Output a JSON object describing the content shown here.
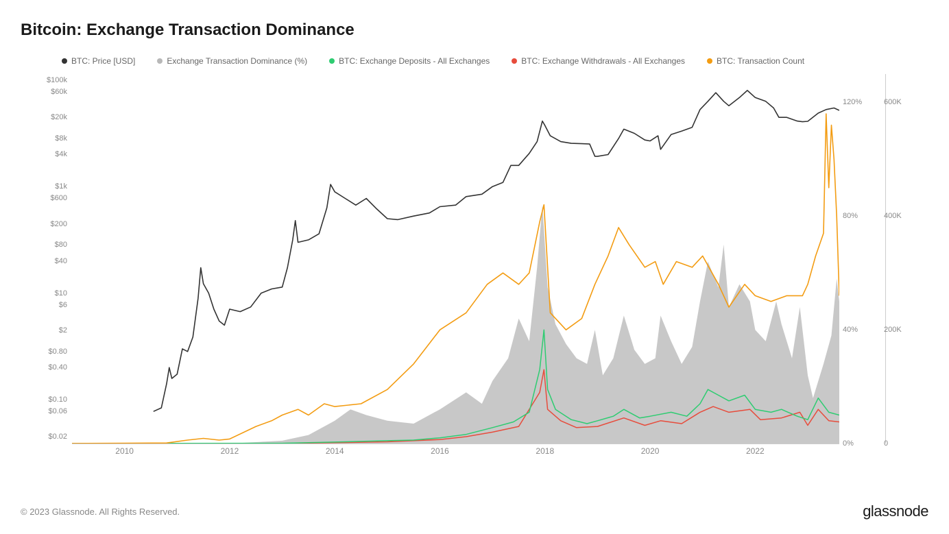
{
  "title": "Bitcoin: Exchange Transaction Dominance",
  "copyright": "© 2023 Glassnode. All Rights Reserved.",
  "brand": "glassnode",
  "legend": [
    {
      "label": "BTC: Price [USD]",
      "color": "#333333"
    },
    {
      "label": "Exchange Transaction Dominance (%)",
      "color": "#b8b8b8"
    },
    {
      "label": "BTC: Exchange Deposits - All Exchanges",
      "color": "#2ecc71"
    },
    {
      "label": "BTC: Exchange Withdrawals - All Exchanges",
      "color": "#e74c3c"
    },
    {
      "label": "BTC: Transaction Count",
      "color": "#f39c12"
    }
  ],
  "chart": {
    "background_color": "#ffffff",
    "grid_color": "#e8e8e8",
    "axis_color": "#cccccc",
    "font_size_axis": 11,
    "x": {
      "min": 2009.0,
      "max": 2023.6,
      "ticks": [
        2010,
        2012,
        2014,
        2016,
        2018,
        2020,
        2022
      ]
    },
    "y_left": {
      "type": "log",
      "ticks": [
        {
          "v": 0.02,
          "label": "$0.02"
        },
        {
          "v": 0.06,
          "label": "$0.06"
        },
        {
          "v": 0.1,
          "label": "$0.10"
        },
        {
          "v": 0.4,
          "label": "$0.40"
        },
        {
          "v": 0.8,
          "label": "$0.80"
        },
        {
          "v": 2,
          "label": "$2"
        },
        {
          "v": 6,
          "label": "$6"
        },
        {
          "v": 10,
          "label": "$10"
        },
        {
          "v": 40,
          "label": "$40"
        },
        {
          "v": 80,
          "label": "$80"
        },
        {
          "v": 200,
          "label": "$200"
        },
        {
          "v": 600,
          "label": "$600"
        },
        {
          "v": 1000,
          "label": "$1k"
        },
        {
          "v": 4000,
          "label": "$4k"
        },
        {
          "v": 8000,
          "label": "$8k"
        },
        {
          "v": 20000,
          "label": "$20k"
        },
        {
          "v": 60000,
          "label": "$60k"
        },
        {
          "v": 100000,
          "label": "$100k"
        }
      ],
      "min": 0.015,
      "max": 130000
    },
    "y_right_pct": {
      "min": 0,
      "max": 130,
      "ticks": [
        0,
        40,
        80,
        120
      ]
    },
    "y_right_count": {
      "min": 0,
      "max": 650000,
      "ticks": [
        0,
        200000,
        400000,
        600000
      ]
    },
    "series": {
      "price": {
        "color": "#333333",
        "width": 1.6,
        "axis": "left_log",
        "data": [
          [
            2010.55,
            0.06
          ],
          [
            2010.7,
            0.07
          ],
          [
            2010.8,
            0.2
          ],
          [
            2010.85,
            0.4
          ],
          [
            2010.9,
            0.25
          ],
          [
            2011.0,
            0.3
          ],
          [
            2011.1,
            0.9
          ],
          [
            2011.2,
            0.8
          ],
          [
            2011.3,
            1.5
          ],
          [
            2011.4,
            8
          ],
          [
            2011.45,
            30
          ],
          [
            2011.5,
            15
          ],
          [
            2011.6,
            10
          ],
          [
            2011.7,
            5
          ],
          [
            2011.8,
            3
          ],
          [
            2011.9,
            2.5
          ],
          [
            2012.0,
            5
          ],
          [
            2012.2,
            4.5
          ],
          [
            2012.4,
            5.5
          ],
          [
            2012.6,
            10
          ],
          [
            2012.8,
            12
          ],
          [
            2013.0,
            13
          ],
          [
            2013.1,
            30
          ],
          [
            2013.2,
            100
          ],
          [
            2013.25,
            230
          ],
          [
            2013.3,
            90
          ],
          [
            2013.5,
            100
          ],
          [
            2013.7,
            130
          ],
          [
            2013.85,
            400
          ],
          [
            2013.92,
            1100
          ],
          [
            2014.0,
            800
          ],
          [
            2014.2,
            600
          ],
          [
            2014.4,
            450
          ],
          [
            2014.6,
            600
          ],
          [
            2014.8,
            380
          ],
          [
            2015.0,
            250
          ],
          [
            2015.2,
            240
          ],
          [
            2015.5,
            280
          ],
          [
            2015.8,
            320
          ],
          [
            2016.0,
            420
          ],
          [
            2016.3,
            450
          ],
          [
            2016.5,
            650
          ],
          [
            2016.8,
            720
          ],
          [
            2017.0,
            1000
          ],
          [
            2017.2,
            1200
          ],
          [
            2017.35,
            2500
          ],
          [
            2017.5,
            2500
          ],
          [
            2017.7,
            4200
          ],
          [
            2017.85,
            7000
          ],
          [
            2017.95,
            17000
          ],
          [
            2018.0,
            14000
          ],
          [
            2018.1,
            9000
          ],
          [
            2018.3,
            7000
          ],
          [
            2018.5,
            6500
          ],
          [
            2018.7,
            6400
          ],
          [
            2018.85,
            6300
          ],
          [
            2018.95,
            3700
          ],
          [
            2019.0,
            3700
          ],
          [
            2019.2,
            4000
          ],
          [
            2019.4,
            8000
          ],
          [
            2019.5,
            12000
          ],
          [
            2019.7,
            10000
          ],
          [
            2019.9,
            7500
          ],
          [
            2020.0,
            7200
          ],
          [
            2020.15,
            9000
          ],
          [
            2020.2,
            5000
          ],
          [
            2020.4,
            9500
          ],
          [
            2020.6,
            11000
          ],
          [
            2020.8,
            13000
          ],
          [
            2020.95,
            28000
          ],
          [
            2021.1,
            40000
          ],
          [
            2021.25,
            58000
          ],
          [
            2021.4,
            40000
          ],
          [
            2021.5,
            33000
          ],
          [
            2021.7,
            47000
          ],
          [
            2021.85,
            64000
          ],
          [
            2022.0,
            47000
          ],
          [
            2022.2,
            40000
          ],
          [
            2022.35,
            30000
          ],
          [
            2022.45,
            20000
          ],
          [
            2022.6,
            20000
          ],
          [
            2022.8,
            17000
          ],
          [
            2022.9,
            16500
          ],
          [
            2023.0,
            16800
          ],
          [
            2023.2,
            24000
          ],
          [
            2023.35,
            28000
          ],
          [
            2023.5,
            30000
          ],
          [
            2023.6,
            27000
          ]
        ]
      },
      "dominance": {
        "color": "#9a9a9a",
        "fill": "#9a9a9a",
        "opacity": 0.55,
        "axis": "right_pct",
        "data": [
          [
            2009,
            0
          ],
          [
            2012,
            0
          ],
          [
            2013,
            1
          ],
          [
            2013.5,
            3
          ],
          [
            2014,
            8
          ],
          [
            2014.3,
            12
          ],
          [
            2014.6,
            10
          ],
          [
            2015,
            8
          ],
          [
            2015.5,
            7
          ],
          [
            2016,
            12
          ],
          [
            2016.5,
            18
          ],
          [
            2016.8,
            14
          ],
          [
            2017,
            22
          ],
          [
            2017.3,
            30
          ],
          [
            2017.5,
            44
          ],
          [
            2017.7,
            36
          ],
          [
            2017.85,
            62
          ],
          [
            2017.95,
            84
          ],
          [
            2018.05,
            55
          ],
          [
            2018.2,
            42
          ],
          [
            2018.4,
            35
          ],
          [
            2018.6,
            30
          ],
          [
            2018.8,
            28
          ],
          [
            2018.95,
            40
          ],
          [
            2019.1,
            24
          ],
          [
            2019.3,
            30
          ],
          [
            2019.5,
            45
          ],
          [
            2019.7,
            33
          ],
          [
            2019.9,
            28
          ],
          [
            2020.1,
            30
          ],
          [
            2020.2,
            45
          ],
          [
            2020.4,
            36
          ],
          [
            2020.6,
            28
          ],
          [
            2020.8,
            34
          ],
          [
            2020.95,
            50
          ],
          [
            2021.1,
            64
          ],
          [
            2021.3,
            55
          ],
          [
            2021.4,
            70
          ],
          [
            2021.5,
            48
          ],
          [
            2021.7,
            56
          ],
          [
            2021.9,
            50
          ],
          [
            2022.0,
            40
          ],
          [
            2022.2,
            36
          ],
          [
            2022.4,
            50
          ],
          [
            2022.5,
            42
          ],
          [
            2022.7,
            30
          ],
          [
            2022.85,
            48
          ],
          [
            2023.0,
            24
          ],
          [
            2023.1,
            16
          ],
          [
            2023.3,
            28
          ],
          [
            2023.45,
            38
          ],
          [
            2023.55,
            58
          ],
          [
            2023.6,
            50
          ]
        ]
      },
      "deposits": {
        "color": "#2ecc71",
        "width": 1.5,
        "axis": "right_count",
        "data": [
          [
            2009,
            0
          ],
          [
            2013,
            500
          ],
          [
            2014,
            2500
          ],
          [
            2015,
            5000
          ],
          [
            2015.5,
            6000
          ],
          [
            2016,
            10000
          ],
          [
            2016.5,
            16000
          ],
          [
            2017,
            28000
          ],
          [
            2017.4,
            38000
          ],
          [
            2017.7,
            55000
          ],
          [
            2017.9,
            130000
          ],
          [
            2017.98,
            200000
          ],
          [
            2018.05,
            95000
          ],
          [
            2018.2,
            60000
          ],
          [
            2018.5,
            42000
          ],
          [
            2018.8,
            35000
          ],
          [
            2019,
            40000
          ],
          [
            2019.3,
            48000
          ],
          [
            2019.5,
            60000
          ],
          [
            2019.8,
            45000
          ],
          [
            2020,
            48000
          ],
          [
            2020.4,
            55000
          ],
          [
            2020.7,
            48000
          ],
          [
            2020.95,
            70000
          ],
          [
            2021.1,
            95000
          ],
          [
            2021.3,
            85000
          ],
          [
            2021.5,
            75000
          ],
          [
            2021.8,
            85000
          ],
          [
            2022,
            60000
          ],
          [
            2022.3,
            55000
          ],
          [
            2022.5,
            60000
          ],
          [
            2022.8,
            48000
          ],
          [
            2023,
            42000
          ],
          [
            2023.2,
            80000
          ],
          [
            2023.4,
            55000
          ],
          [
            2023.6,
            50000
          ]
        ]
      },
      "withdrawals": {
        "color": "#e74c3c",
        "width": 1.5,
        "axis": "right_count",
        "data": [
          [
            2009,
            0
          ],
          [
            2013,
            300
          ],
          [
            2014,
            1500
          ],
          [
            2015,
            3000
          ],
          [
            2016,
            7000
          ],
          [
            2016.5,
            12000
          ],
          [
            2017,
            20000
          ],
          [
            2017.5,
            30000
          ],
          [
            2017.9,
            90000
          ],
          [
            2017.98,
            130000
          ],
          [
            2018.05,
            60000
          ],
          [
            2018.3,
            40000
          ],
          [
            2018.6,
            28000
          ],
          [
            2019,
            30000
          ],
          [
            2019.5,
            45000
          ],
          [
            2019.9,
            32000
          ],
          [
            2020.2,
            40000
          ],
          [
            2020.6,
            35000
          ],
          [
            2020.95,
            55000
          ],
          [
            2021.2,
            65000
          ],
          [
            2021.5,
            55000
          ],
          [
            2021.9,
            60000
          ],
          [
            2022.1,
            42000
          ],
          [
            2022.5,
            45000
          ],
          [
            2022.85,
            55000
          ],
          [
            2023,
            32000
          ],
          [
            2023.2,
            60000
          ],
          [
            2023.4,
            40000
          ],
          [
            2023.6,
            38000
          ]
        ]
      },
      "txcount": {
        "color": "#f39c12",
        "width": 1.6,
        "axis": "right_count",
        "data": [
          [
            2009,
            100
          ],
          [
            2010,
            500
          ],
          [
            2010.8,
            1000
          ],
          [
            2011.2,
            6000
          ],
          [
            2011.5,
            9000
          ],
          [
            2011.8,
            6000
          ],
          [
            2012,
            8000
          ],
          [
            2012.5,
            30000
          ],
          [
            2012.8,
            40000
          ],
          [
            2013,
            50000
          ],
          [
            2013.3,
            60000
          ],
          [
            2013.5,
            50000
          ],
          [
            2013.8,
            70000
          ],
          [
            2014,
            65000
          ],
          [
            2014.5,
            70000
          ],
          [
            2015,
            95000
          ],
          [
            2015.5,
            140000
          ],
          [
            2016,
            200000
          ],
          [
            2016.5,
            230000
          ],
          [
            2016.9,
            280000
          ],
          [
            2017.2,
            300000
          ],
          [
            2017.5,
            280000
          ],
          [
            2017.7,
            300000
          ],
          [
            2017.9,
            390000
          ],
          [
            2017.98,
            420000
          ],
          [
            2018.1,
            230000
          ],
          [
            2018.4,
            200000
          ],
          [
            2018.7,
            220000
          ],
          [
            2018.95,
            280000
          ],
          [
            2019.2,
            330000
          ],
          [
            2019.4,
            380000
          ],
          [
            2019.6,
            350000
          ],
          [
            2019.9,
            310000
          ],
          [
            2020.1,
            320000
          ],
          [
            2020.25,
            280000
          ],
          [
            2020.5,
            320000
          ],
          [
            2020.8,
            310000
          ],
          [
            2021,
            330000
          ],
          [
            2021.3,
            280000
          ],
          [
            2021.5,
            240000
          ],
          [
            2021.8,
            280000
          ],
          [
            2022,
            260000
          ],
          [
            2022.3,
            250000
          ],
          [
            2022.6,
            260000
          ],
          [
            2022.9,
            260000
          ],
          [
            2023,
            280000
          ],
          [
            2023.15,
            330000
          ],
          [
            2023.3,
            370000
          ],
          [
            2023.35,
            580000
          ],
          [
            2023.4,
            450000
          ],
          [
            2023.45,
            560000
          ],
          [
            2023.5,
            500000
          ],
          [
            2023.55,
            400000
          ],
          [
            2023.6,
            260000
          ]
        ]
      }
    }
  }
}
